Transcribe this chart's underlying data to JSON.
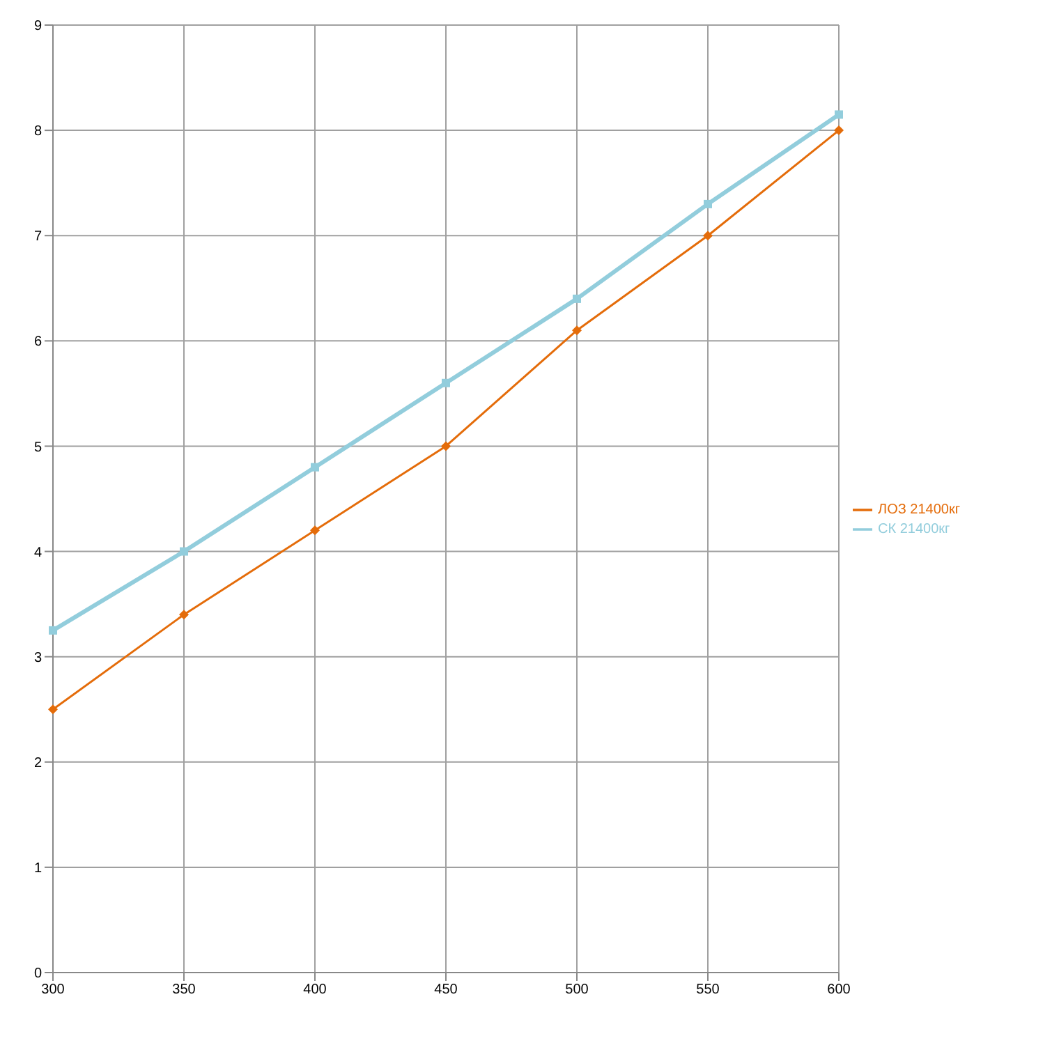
{
  "chart_data": {
    "type": "line",
    "categories": [
      "300",
      "350",
      "400",
      "450",
      "500",
      "550",
      "600"
    ],
    "series": [
      {
        "name": "ЛОЗ 21400кг",
        "color": "#e46c0a",
        "marker": "diamond",
        "values": [
          2.5,
          3.4,
          4.2,
          5.0,
          6.1,
          7.0,
          8.0
        ]
      },
      {
        "name": "СК 21400кг",
        "color": "#92cddc",
        "marker": "square",
        "values": [
          3.25,
          4.0,
          4.8,
          5.6,
          6.4,
          7.3,
          8.15
        ]
      }
    ],
    "ylim": [
      0,
      9
    ],
    "yticks": [
      0,
      1,
      2,
      3,
      4,
      5,
      6,
      7,
      8,
      9
    ],
    "grid": true,
    "legend": "right"
  }
}
